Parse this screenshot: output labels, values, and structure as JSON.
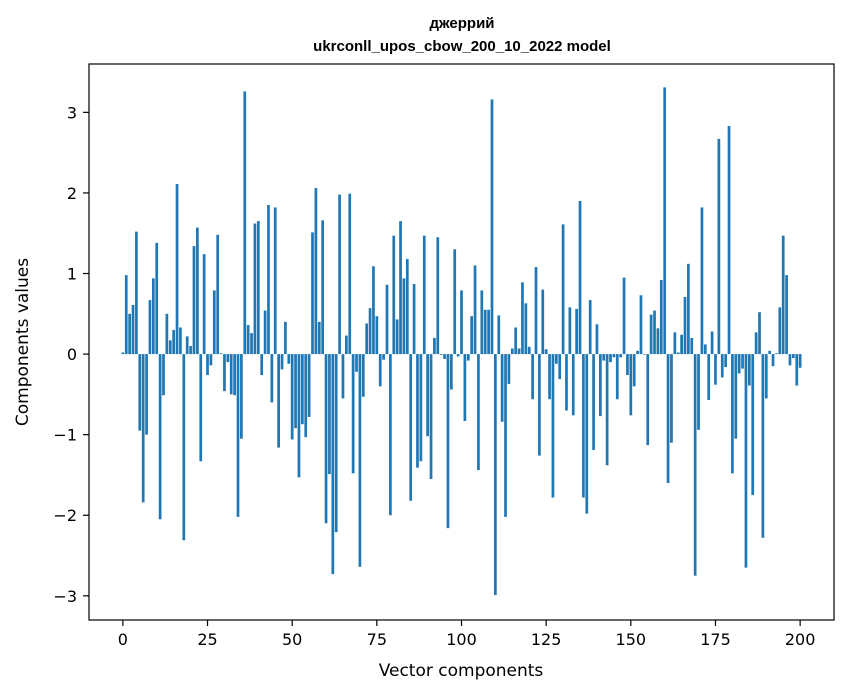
{
  "chart_data": {
    "type": "bar",
    "title_line1": "джеррий",
    "title_line2": "ukrconll_upos_cbow_200_10_2022 model",
    "xlabel": "Vector components",
    "ylabel": "Components values",
    "xlim": [
      -10,
      210
    ],
    "ylim": [
      -3.3,
      3.6
    ],
    "xticks": [
      0,
      25,
      50,
      75,
      100,
      125,
      150,
      175,
      200
    ],
    "yticks": [
      -3,
      -2,
      -1,
      0,
      1,
      2,
      3
    ],
    "xtick_labels": [
      "0",
      "25",
      "50",
      "75",
      "100",
      "125",
      "150",
      "175",
      "200"
    ],
    "ytick_labels": [
      "−3",
      "−2",
      "−1",
      "0",
      "1",
      "2",
      "3"
    ],
    "bar_color": "#1f77b4",
    "values": [
      0.02,
      0.98,
      0.5,
      0.61,
      1.52,
      -0.95,
      -1.84,
      -1.0,
      0.67,
      0.94,
      1.38,
      -2.05,
      -0.51,
      0.5,
      0.17,
      0.3,
      2.11,
      0.33,
      -2.31,
      0.22,
      0.1,
      1.34,
      1.57,
      -1.33,
      1.24,
      -0.26,
      -0.14,
      0.79,
      1.48,
      0.01,
      -0.46,
      -0.1,
      -0.5,
      -0.51,
      -2.02,
      -1.05,
      3.26,
      0.36,
      0.26,
      1.62,
      1.65,
      -0.26,
      0.54,
      1.85,
      -0.6,
      1.82,
      -1.16,
      -0.19,
      0.4,
      -0.12,
      -1.06,
      -0.92,
      -1.53,
      -0.87,
      -1.03,
      -0.78,
      1.51,
      2.06,
      0.4,
      1.66,
      -2.1,
      -1.49,
      -2.73,
      -2.21,
      1.98,
      -0.55,
      0.23,
      1.99,
      -1.48,
      -0.22,
      -2.64,
      -0.53,
      0.38,
      0.57,
      1.09,
      0.47,
      -0.4,
      -0.07,
      0.86,
      -2.0,
      1.47,
      0.43,
      1.65,
      0.94,
      1.18,
      -1.82,
      0.87,
      -1.41,
      -1.33,
      1.47,
      -1.02,
      -1.55,
      0.2,
      1.45,
      -0.01,
      -0.06,
      -2.16,
      -0.44,
      1.3,
      -0.03,
      0.79,
      -0.83,
      -0.08,
      0.47,
      1.1,
      -1.44,
      0.79,
      0.55,
      0.55,
      3.16,
      -2.99,
      0.48,
      -0.84,
      -2.02,
      -0.37,
      0.07,
      0.33,
      0.07,
      0.89,
      0.63,
      0.09,
      -0.56,
      1.08,
      -1.26,
      0.8,
      0.06,
      -0.56,
      -1.78,
      -0.12,
      -0.31,
      1.61,
      -0.7,
      0.58,
      -0.76,
      0.56,
      1.9,
      -1.78,
      -1.98,
      0.67,
      -1.19,
      0.37,
      -0.77,
      -0.08,
      -1.38,
      -0.1,
      -0.04,
      -0.56,
      -0.04,
      0.95,
      -0.26,
      -0.76,
      -0.4,
      0.04,
      0.73,
      0.0,
      -1.13,
      0.49,
      0.54,
      0.32,
      0.92,
      3.31,
      -1.6,
      -1.1,
      0.27,
      0.02,
      0.24,
      0.71,
      1.12,
      0.2,
      -2.75,
      -0.94,
      1.82,
      0.12,
      -0.57,
      0.28,
      -0.38,
      2.67,
      -0.29,
      -0.16,
      2.83,
      -1.48,
      -1.05,
      -0.24,
      -0.18,
      -2.65,
      -0.39,
      -1.75,
      0.27,
      0.52,
      -2.28,
      -0.55,
      0.04,
      -0.15,
      0.01,
      0.58,
      1.47,
      0.98,
      -0.14,
      -0.05,
      -0.39,
      -0.17
    ]
  }
}
